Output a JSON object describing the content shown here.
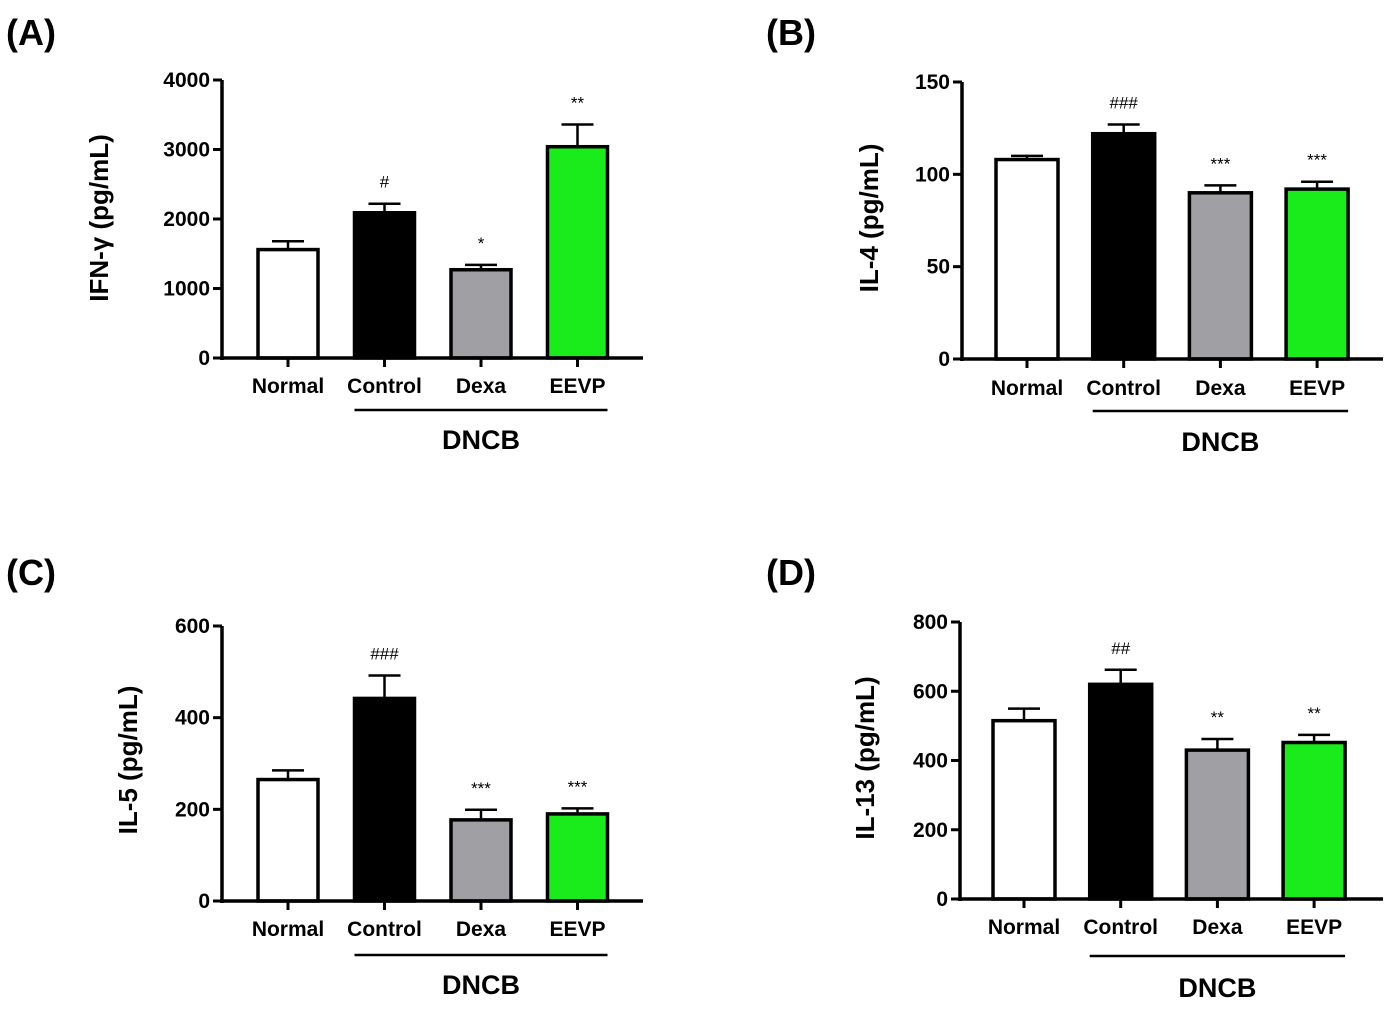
{
  "colors": {
    "normal": "#ffffff",
    "control": "#000000",
    "dexa": "#a0a0a4",
    "eevp": "#1aeb1a",
    "stroke": "#000000"
  },
  "chart_data": [
    {
      "panel": "(A)",
      "type": "bar",
      "ylabel": "IFN-γ (pg/mL)",
      "categories": [
        "Normal",
        "Control",
        "Dexa",
        "EEVP"
      ],
      "values": [
        1560,
        2090,
        1270,
        3040
      ],
      "errors": [
        120,
        130,
        70,
        320
      ],
      "annotations": [
        "",
        "#",
        "*",
        "**"
      ],
      "ylim": [
        0,
        4000
      ],
      "yticks": [
        0,
        1000,
        2000,
        3000,
        4000
      ],
      "group_label": "DNCB",
      "group_span": [
        "Control",
        "EEVP"
      ]
    },
    {
      "panel": "(B)",
      "type": "bar",
      "ylabel": "IL-4 (pg/mL)",
      "categories": [
        "Normal",
        "Control",
        "Dexa",
        "EEVP"
      ],
      "values": [
        108,
        122,
        90,
        92
      ],
      "errors": [
        2,
        5,
        4,
        4
      ],
      "annotations": [
        "",
        "###",
        "***",
        "***"
      ],
      "ylim": [
        0,
        150
      ],
      "yticks": [
        0,
        50,
        100,
        150
      ],
      "group_label": "DNCB",
      "group_span": [
        "Control",
        "EEVP"
      ]
    },
    {
      "panel": "(C)",
      "type": "bar",
      "ylabel": "IL-5 (pg/mL)",
      "categories": [
        "Normal",
        "Control",
        "Dexa",
        "EEVP"
      ],
      "values": [
        265,
        442,
        177,
        190
      ],
      "errors": [
        20,
        50,
        22,
        12
      ],
      "annotations": [
        "",
        "###",
        "***",
        "***"
      ],
      "ylim": [
        0,
        600
      ],
      "yticks": [
        0,
        200,
        400,
        600
      ],
      "group_label": "DNCB",
      "group_span": [
        "Control",
        "EEVP"
      ]
    },
    {
      "panel": "(D)",
      "type": "bar",
      "ylabel": "IL-13 (pg/mL)",
      "categories": [
        "Normal",
        "Control",
        "Dexa",
        "EEVP"
      ],
      "values": [
        515,
        620,
        430,
        452
      ],
      "errors": [
        35,
        42,
        32,
        22
      ],
      "annotations": [
        "",
        "##",
        "**",
        "**"
      ],
      "ylim": [
        0,
        800
      ],
      "yticks": [
        0,
        200,
        400,
        600,
        800
      ],
      "group_label": "DNCB",
      "group_span": [
        "Control",
        "EEVP"
      ]
    }
  ]
}
